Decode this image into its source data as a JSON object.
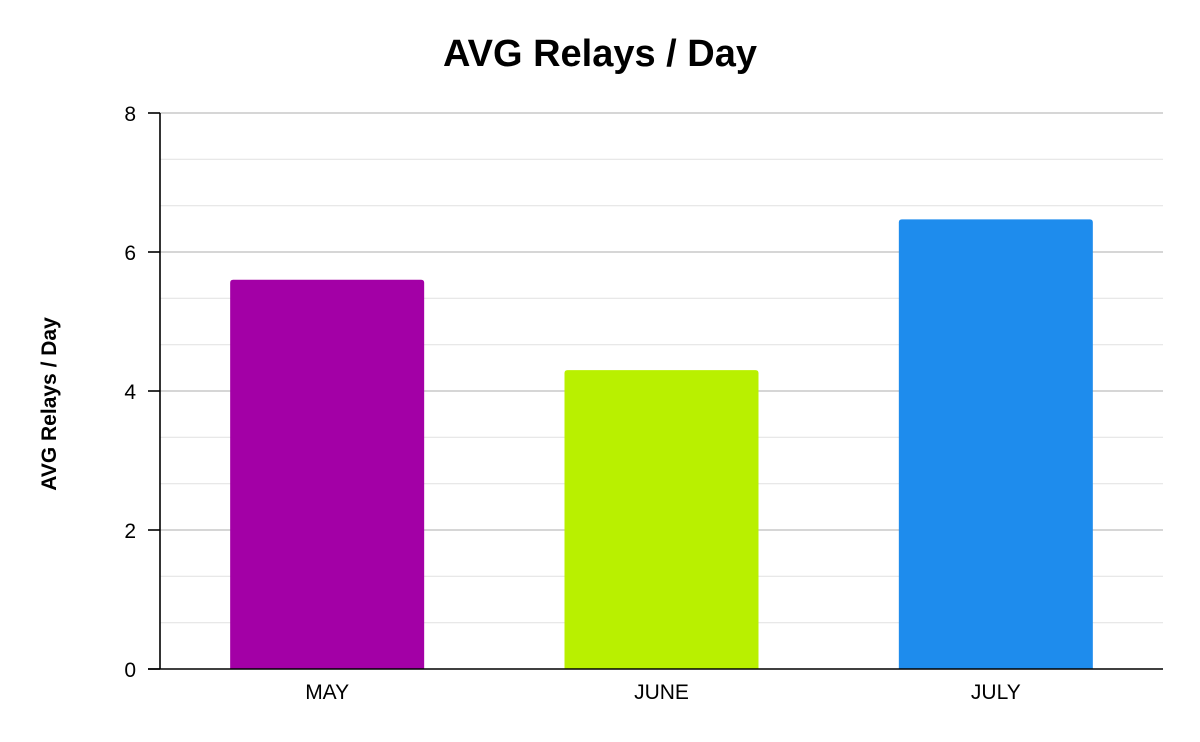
{
  "chart_data": {
    "type": "bar",
    "title": "AVG Relays / Day",
    "xlabel": "",
    "ylabel": "AVG Relays / Day",
    "categories": [
      "MAY",
      "JUNE",
      "JULY"
    ],
    "values": [
      5.6,
      4.3,
      6.47
    ],
    "colors": [
      "#a300a6",
      "#b9f000",
      "#1e8ced"
    ],
    "ylim": [
      0,
      8
    ],
    "yticks": [
      "0",
      "2",
      "4",
      "6",
      "8"
    ],
    "minor_grid": true,
    "legend": "none"
  }
}
